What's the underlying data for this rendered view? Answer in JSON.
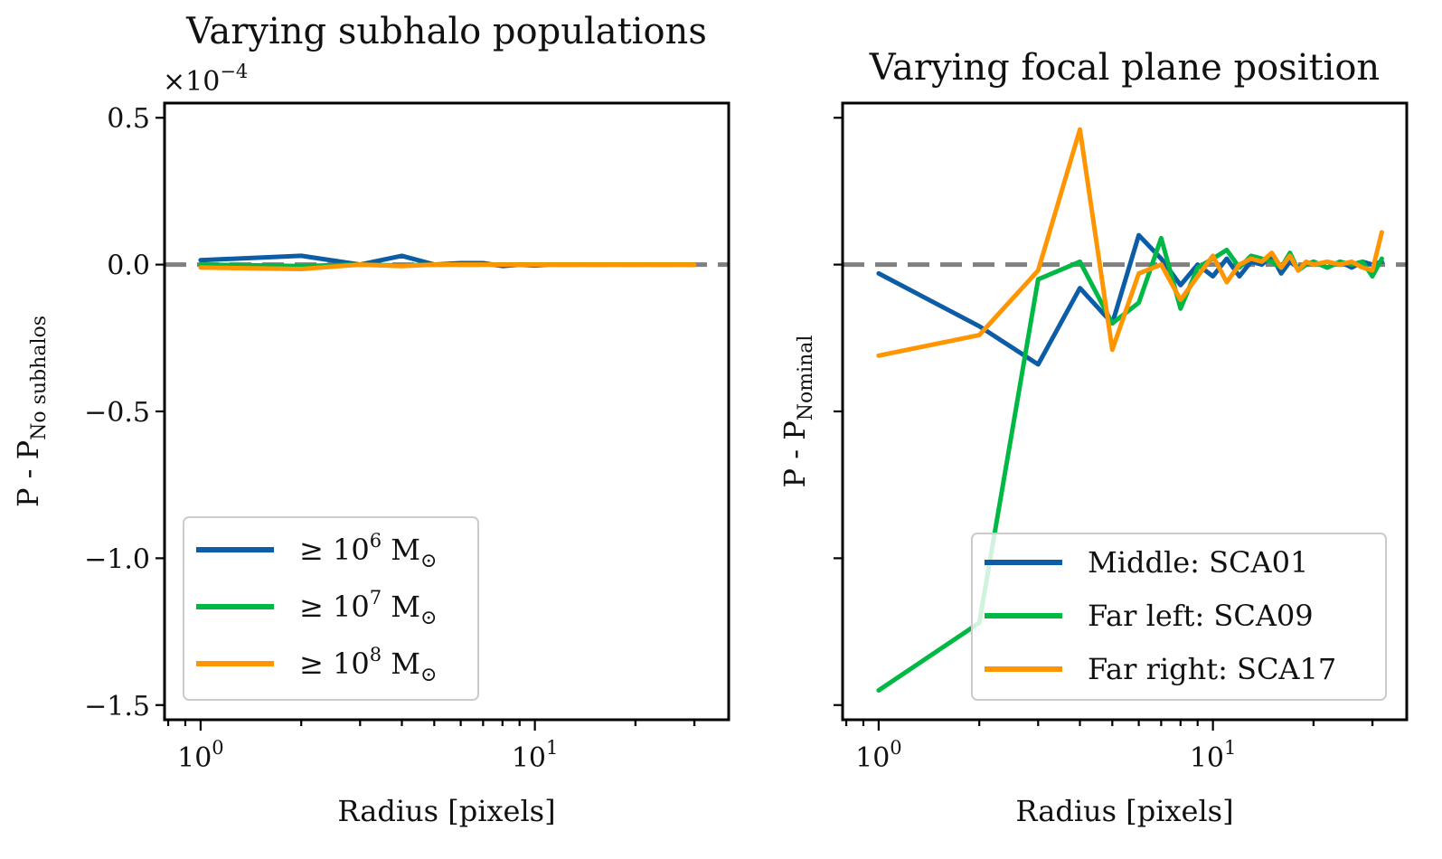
{
  "colors": {
    "blue": "#0c5da5",
    "green": "#00b945",
    "orange": "#ff9500",
    "zero_line": "#808080"
  },
  "chart_data": [
    {
      "type": "line",
      "title": "Varying subhalo populations",
      "xlabel": "Radius [pixels]",
      "ylabel": "P - P",
      "ylabel_sub": "No subhalos",
      "xscale": "log",
      "xlim": [
        0.78,
        38
      ],
      "ylim": [
        -1.55,
        0.55
      ],
      "y_multiplier": "×10",
      "y_multiplier_exp": "−4",
      "yticks": [
        0.5,
        0.0,
        -0.5,
        -1.0,
        -1.5
      ],
      "ytick_labels": [
        "0.5",
        "0.0",
        "−0.5",
        "−1.0",
        "−1.5"
      ],
      "xticks": [
        1,
        10
      ],
      "xtick_labels": [
        {
          "base": "10",
          "exp": "0"
        },
        {
          "base": "10",
          "exp": "1"
        }
      ],
      "reference_line": 0.0,
      "legend_position": "lower-left",
      "series": [
        {
          "name": "≥ 10",
          "name_exp": "6",
          "name_unit": "M",
          "name_sub": "⊙",
          "color": "blue",
          "x": [
            1,
            2,
            3,
            4,
            5,
            6,
            7,
            8,
            9,
            10,
            11,
            12,
            14,
            16,
            18,
            20,
            23,
            26,
            30
          ],
          "y": [
            0.015,
            0.03,
            0.0,
            0.03,
            0.0,
            0.005,
            0.005,
            -0.005,
            0.0,
            -0.003,
            0.0,
            0.0,
            0.0,
            0.0,
            0.0,
            0.0,
            0.0,
            0.0,
            0.0
          ]
        },
        {
          "name": "≥ 10",
          "name_exp": "7",
          "name_unit": "M",
          "name_sub": "⊙",
          "color": "green",
          "x": [
            1,
            2,
            3,
            4,
            5,
            6,
            7,
            8,
            9,
            10,
            11,
            12,
            14,
            16,
            18,
            20,
            23,
            26,
            30
          ],
          "y": [
            0.0,
            -0.005,
            0.0,
            -0.003,
            0.0,
            0.0,
            0.0,
            0.0,
            0.0,
            0.0,
            0.0,
            0.0,
            0.0,
            0.0,
            0.0,
            0.0,
            0.0,
            0.0,
            0.0
          ]
        },
        {
          "name": "≥ 10",
          "name_exp": "8",
          "name_unit": "M",
          "name_sub": "⊙",
          "color": "orange",
          "x": [
            1,
            2,
            3,
            4,
            5,
            6,
            7,
            8,
            9,
            10,
            11,
            12,
            14,
            16,
            18,
            20,
            23,
            26,
            30
          ],
          "y": [
            -0.01,
            -0.015,
            0.0,
            -0.005,
            0.0,
            0.0,
            0.0,
            0.0,
            0.0,
            0.0,
            0.0,
            0.0,
            0.0,
            0.0,
            0.0,
            0.0,
            0.0,
            0.0,
            0.0
          ]
        }
      ]
    },
    {
      "type": "line",
      "title": "Varying focal plane position",
      "xlabel": "Radius [pixels]",
      "ylabel": "P - P",
      "ylabel_sub": "Nominal",
      "xscale": "log",
      "xlim": [
        0.78,
        38
      ],
      "ylim": [
        -1.55,
        0.55
      ],
      "yticks": [
        0.5,
        0.0,
        -0.5,
        -1.0,
        -1.5
      ],
      "xticks": [
        1,
        10
      ],
      "xtick_labels": [
        {
          "base": "10",
          "exp": "0"
        },
        {
          "base": "10",
          "exp": "1"
        }
      ],
      "reference_line": 0.0,
      "legend_position": "lower-right",
      "series": [
        {
          "name": "Middle: SCA01",
          "color": "blue",
          "x": [
            1,
            2,
            3,
            4,
            5,
            6,
            7,
            8,
            9,
            10,
            11,
            12,
            13,
            14,
            15,
            16,
            17,
            18,
            19,
            20,
            22,
            24,
            26,
            28,
            30,
            32
          ],
          "y": [
            -0.03,
            -0.21,
            -0.34,
            -0.08,
            -0.2,
            0.1,
            0.02,
            -0.07,
            0.0,
            -0.04,
            0.02,
            -0.04,
            0.01,
            0.0,
            0.03,
            -0.03,
            0.01,
            -0.01,
            0.0,
            0.01,
            -0.01,
            0.01,
            -0.01,
            0.01,
            0.0,
            0.01
          ]
        },
        {
          "name": "Far left: SCA09",
          "color": "green",
          "x": [
            1,
            2,
            3,
            4,
            5,
            6,
            7,
            8,
            9,
            10,
            11,
            12,
            13,
            14,
            15,
            16,
            17,
            18,
            19,
            20,
            22,
            24,
            26,
            28,
            30,
            32
          ],
          "y": [
            -1.45,
            -1.22,
            -0.05,
            0.01,
            -0.2,
            -0.13,
            0.09,
            -0.15,
            -0.01,
            0.02,
            0.05,
            -0.01,
            0.03,
            0.02,
            0.01,
            -0.01,
            0.04,
            -0.02,
            0.0,
            0.01,
            -0.01,
            0.01,
            0.0,
            0.01,
            -0.04,
            0.02
          ]
        },
        {
          "name": "Far right: SCA17",
          "color": "orange",
          "x": [
            1,
            2,
            3,
            4,
            5,
            6,
            7,
            8,
            9,
            10,
            11,
            12,
            13,
            14,
            15,
            16,
            17,
            18,
            19,
            20,
            22,
            24,
            26,
            28,
            30,
            32
          ],
          "y": [
            -0.31,
            -0.24,
            -0.02,
            0.46,
            -0.29,
            -0.03,
            0.0,
            -0.12,
            -0.04,
            0.03,
            -0.06,
            0.0,
            0.02,
            0.01,
            0.04,
            -0.01,
            0.03,
            -0.02,
            0.01,
            0.0,
            0.01,
            0.0,
            0.01,
            -0.01,
            -0.02,
            0.11
          ]
        }
      ]
    }
  ]
}
